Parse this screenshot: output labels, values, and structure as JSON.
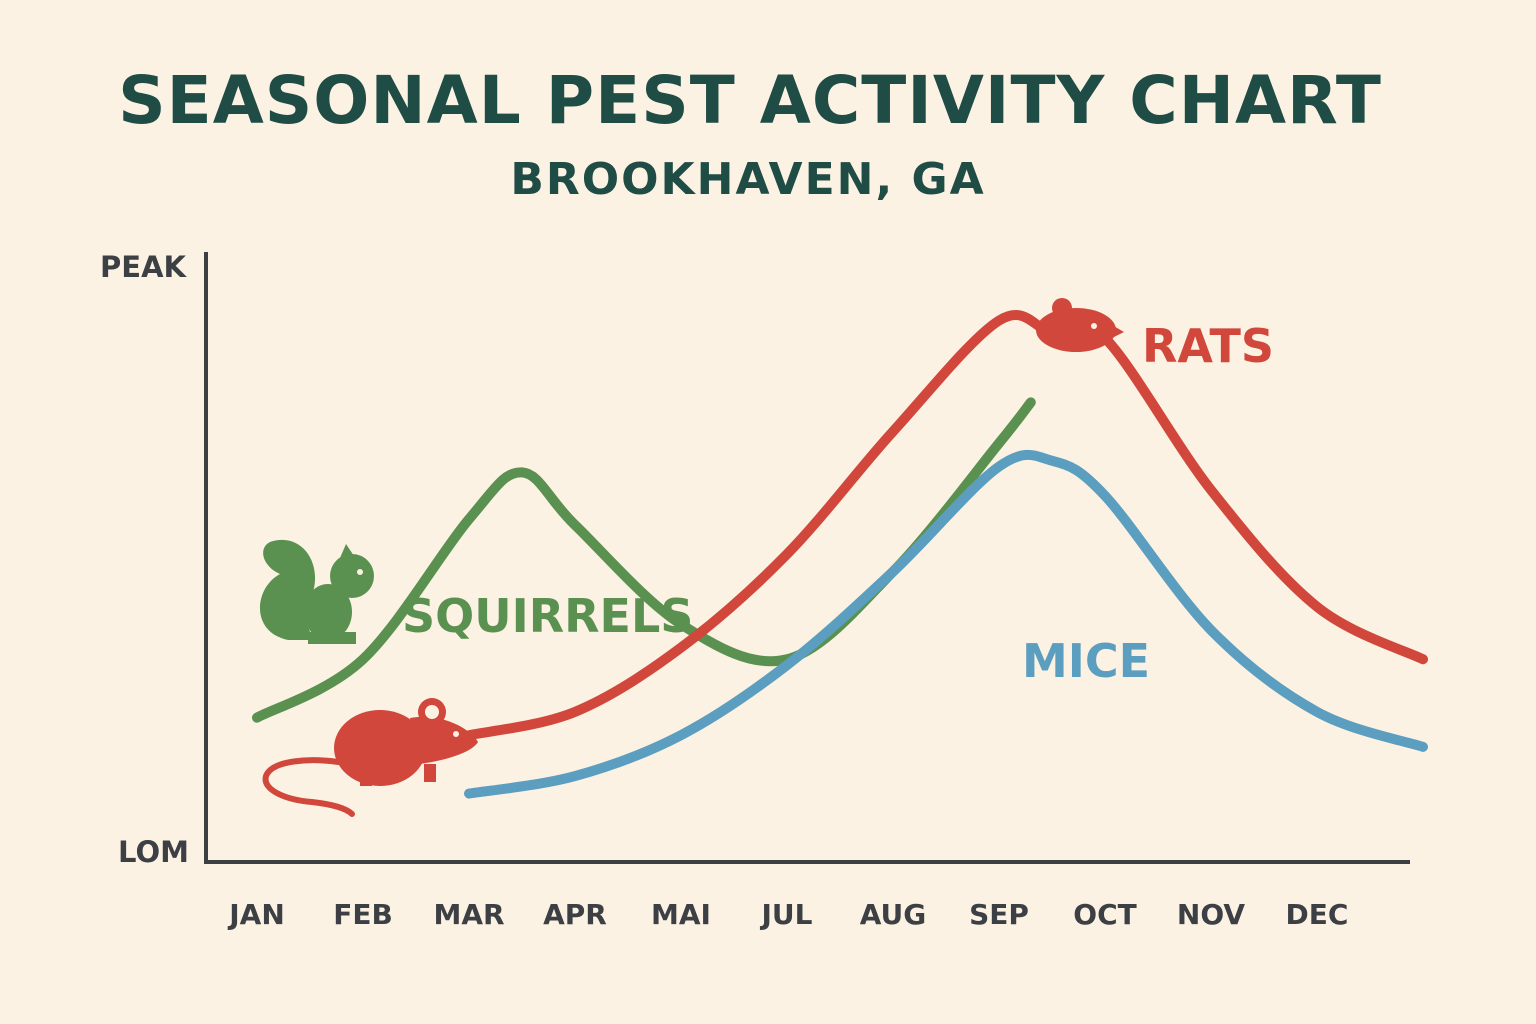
{
  "title": "SEASONAL PEST ACTIVITY CHART",
  "subtitle": "BROOKHAVEN, GA",
  "chart_data": {
    "type": "line",
    "x_labels": [
      "JAN",
      "FEB",
      "MAR",
      "APR",
      "MAI",
      "JUL",
      "AUG",
      "SEP",
      "OCT",
      "NOV",
      "DEC"
    ],
    "y_labels": {
      "top": "PEAK",
      "bottom": "LOM"
    },
    "ylim": [
      0,
      100
    ],
    "grid": false,
    "series": [
      {
        "name": "SQUIRRELS",
        "color": "#5a9150",
        "icon": "squirrel-icon",
        "x": [
          0,
          1,
          2,
          2.5,
          3,
          4,
          5,
          6,
          7,
          7.3
        ],
        "values": [
          23,
          33,
          57,
          65,
          56,
          39,
          33,
          48,
          70,
          77
        ]
      },
      {
        "name": "RATS",
        "color": "#d1473b",
        "icon": "rat-icon",
        "x": [
          2,
          3,
          4,
          5,
          6,
          7,
          7.5,
          8,
          9,
          10,
          11
        ],
        "values": [
          20,
          24,
          35,
          51,
          72,
          91,
          89,
          88,
          62,
          42,
          33
        ]
      },
      {
        "name": "MICE",
        "color": "#5b9ebf",
        "x": [
          2,
          3,
          4,
          5,
          6,
          7,
          7.5,
          8,
          9,
          10,
          11
        ],
        "values": [
          10,
          13,
          20,
          32,
          48,
          66,
          67,
          61,
          38,
          24,
          18
        ]
      }
    ]
  }
}
